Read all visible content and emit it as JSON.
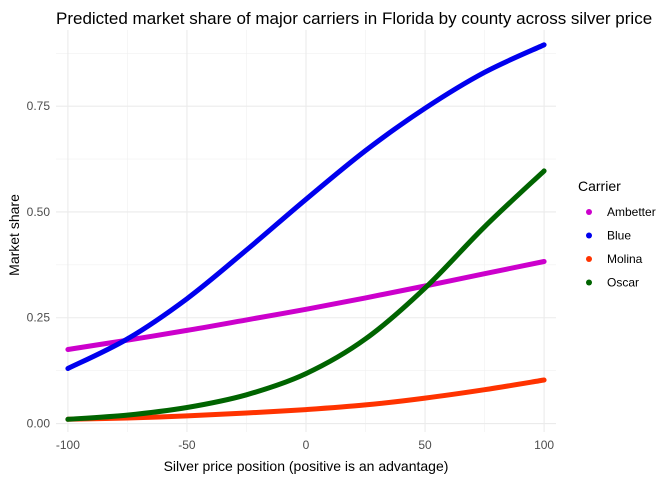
{
  "chart_data": {
    "type": "line",
    "title": "Predicted market share of major carriers in Florida by county across silver price",
    "xlabel": "Silver price position (positive is an advantage)",
    "ylabel": "Market share",
    "xlim": [
      -105,
      105
    ],
    "ylim": [
      -0.02,
      0.93
    ],
    "x_ticks": [
      -100,
      -50,
      0,
      50,
      100
    ],
    "x_tick_labels": [
      "-100",
      "-50",
      "0",
      "50",
      "100"
    ],
    "y_ticks": [
      0,
      0.25,
      0.5,
      0.75
    ],
    "y_tick_labels": [
      "0.00",
      "0.25",
      "0.50",
      "0.75"
    ],
    "grid": true,
    "legend": {
      "title": "Carrier",
      "position": "right"
    },
    "series": [
      {
        "name": "Ambetter",
        "color": "#cc00cc",
        "x": [
          -100,
          -75,
          -50,
          -25,
          0,
          25,
          50,
          75,
          100
        ],
        "y": [
          0.175,
          0.197,
          0.22,
          0.245,
          0.27,
          0.297,
          0.325,
          0.354,
          0.383
        ]
      },
      {
        "name": "Blue",
        "color": "#0000ee",
        "x": [
          -100,
          -75,
          -50,
          -25,
          0,
          25,
          50,
          75,
          100
        ],
        "y": [
          0.13,
          0.2,
          0.295,
          0.41,
          0.53,
          0.645,
          0.745,
          0.83,
          0.895
        ]
      },
      {
        "name": "Molina",
        "color": "#ff3300",
        "x": [
          -100,
          -75,
          -50,
          -25,
          0,
          25,
          50,
          75,
          100
        ],
        "y": [
          0.01,
          0.013,
          0.018,
          0.025,
          0.033,
          0.044,
          0.06,
          0.08,
          0.103
        ]
      },
      {
        "name": "Oscar",
        "color": "#006400",
        "x": [
          -100,
          -75,
          -50,
          -25,
          0,
          25,
          50,
          75,
          100
        ],
        "y": [
          0.01,
          0.02,
          0.038,
          0.068,
          0.118,
          0.2,
          0.32,
          0.465,
          0.597
        ]
      }
    ]
  }
}
